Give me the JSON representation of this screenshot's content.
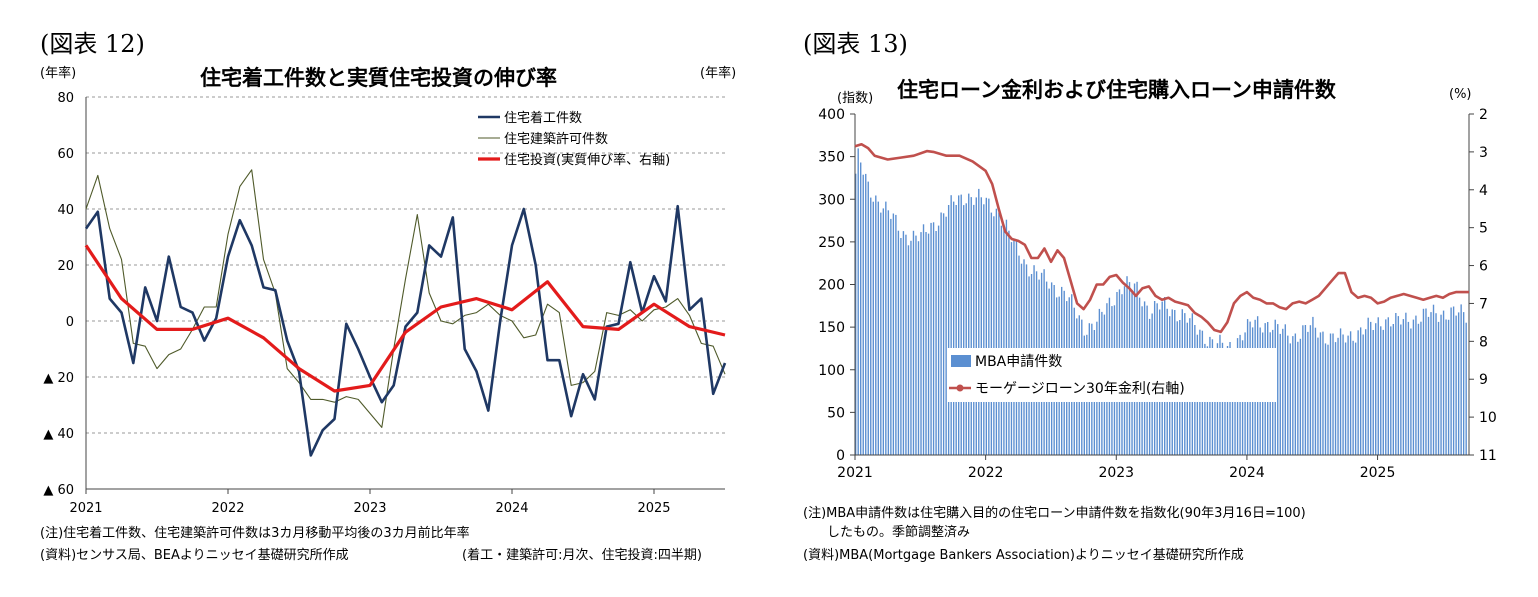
{
  "left": {
    "figure_label": "(図表 12)",
    "unit_left": "(年率)",
    "unit_right": "(年率)",
    "note1": "(注)住宅着工件数、住宅建築許可件数は3カ月移動平均後の3カ月前比年率",
    "note2": "(資料)センサス局、BEAよりニッセイ基礎研究所作成",
    "note3": "(着工・建築許可:月次、住宅投資:四半期)"
  },
  "right": {
    "figure_label": "(図表 13)",
    "unit_left": "(指数)",
    "unit_right": "(%)",
    "note1": "(注)MBA申請件数は住宅購入目的の住宅ローン申請件数を指数化(90年3月16日=100)",
    "note2": "したもの。季節調整済み",
    "note3": "(資料)MBA(Mortgage Bankers Association)よりニッセイ基礎研究所作成"
  },
  "chart_data": [
    {
      "type": "line",
      "title": "住宅着工件数と実質住宅投資の伸び率",
      "xlabel": "",
      "ylabel": "(年率)",
      "ylim": [
        -60,
        80
      ],
      "yticks": [
        80,
        60,
        40,
        20,
        0,
        -20,
        -40,
        -60
      ],
      "ytick_labels": [
        "80",
        "60",
        "40",
        "20",
        "0",
        "▲ 20",
        "▲ 40",
        "▲ 60"
      ],
      "xlim": [
        2021.0,
        2025.5
      ],
      "xticks": [
        2021,
        2022,
        2023,
        2024,
        2025
      ],
      "xtick_labels": [
        "2021",
        "2022",
        "2023",
        "2024",
        "2025"
      ],
      "grid": "horizontal-dashed",
      "legend_position": "top-right",
      "series": [
        {
          "name": "住宅着工件数",
          "color": "#1f3864",
          "width": 2.6,
          "x": [
            2021.0,
            2021.083,
            2021.167,
            2021.25,
            2021.333,
            2021.417,
            2021.5,
            2021.583,
            2021.667,
            2021.75,
            2021.833,
            2021.917,
            2022.0,
            2022.083,
            2022.167,
            2022.25,
            2022.333,
            2022.417,
            2022.5,
            2022.583,
            2022.667,
            2022.75,
            2022.833,
            2022.917,
            2023.0,
            2023.083,
            2023.167,
            2023.25,
            2023.333,
            2023.417,
            2023.5,
            2023.583,
            2023.667,
            2023.75,
            2023.833,
            2023.917,
            2024.0,
            2024.083,
            2024.167,
            2024.25,
            2024.333,
            2024.417,
            2024.5,
            2024.583,
            2024.667,
            2024.75,
            2024.833,
            2024.917,
            2025.0,
            2025.083,
            2025.167,
            2025.25,
            2025.333,
            2025.417,
            2025.5
          ],
          "y": [
            33,
            39,
            8,
            3,
            -15,
            12,
            0,
            23,
            5,
            3,
            -7,
            1,
            23,
            36,
            27,
            12,
            11,
            -7,
            -18,
            -48,
            -39,
            -35,
            -1,
            -10,
            -20,
            -29,
            -23,
            -2,
            3,
            27,
            23,
            37,
            -10,
            -18,
            -32,
            0,
            27,
            40,
            20,
            -14,
            -14,
            -34,
            -19,
            -28,
            -2,
            -1,
            21,
            3,
            16,
            7,
            41,
            4,
            8,
            -26,
            -15
          ]
        },
        {
          "name": "住宅建築許可件数",
          "color": "#4f5a2a",
          "width": 1.1,
          "x": [
            2021.0,
            2021.083,
            2021.167,
            2021.25,
            2021.333,
            2021.417,
            2021.5,
            2021.583,
            2021.667,
            2021.75,
            2021.833,
            2021.917,
            2022.0,
            2022.083,
            2022.167,
            2022.25,
            2022.333,
            2022.417,
            2022.5,
            2022.583,
            2022.667,
            2022.75,
            2022.833,
            2022.917,
            2023.0,
            2023.083,
            2023.167,
            2023.25,
            2023.333,
            2023.417,
            2023.5,
            2023.583,
            2023.667,
            2023.75,
            2023.833,
            2023.917,
            2024.0,
            2024.083,
            2024.167,
            2024.25,
            2024.333,
            2024.417,
            2024.5,
            2024.583,
            2024.667,
            2024.75,
            2024.833,
            2024.917,
            2025.0,
            2025.083,
            2025.167,
            2025.25,
            2025.333,
            2025.417,
            2025.5
          ],
          "y": [
            40,
            52,
            33,
            22,
            -8,
            -9,
            -17,
            -12,
            -10,
            -3,
            5,
            5,
            31,
            48,
            54,
            22,
            10,
            -17,
            -22,
            -28,
            -28,
            -29,
            -27,
            -28,
            -33,
            -38,
            -10,
            15,
            38,
            10,
            0,
            -1,
            2,
            3,
            6,
            2,
            0,
            -6,
            -5,
            6,
            3,
            -23,
            -22,
            -18,
            3,
            2,
            4,
            0,
            4,
            5,
            8,
            2,
            -8,
            -9,
            -19
          ]
        },
        {
          "name": "住宅投資(実質伸び率、右軸)",
          "color": "#e31b1b",
          "width": 3.2,
          "x": [
            2021.0,
            2021.25,
            2021.5,
            2021.75,
            2022.0,
            2022.25,
            2022.5,
            2022.75,
            2023.0,
            2023.25,
            2023.5,
            2023.75,
            2024.0,
            2024.25,
            2024.5,
            2024.75,
            2025.0,
            2025.25,
            2025.5
          ],
          "y": [
            27,
            8,
            -3,
            -3,
            1,
            -6,
            -17,
            -25,
            -23,
            -4,
            5,
            8,
            4,
            14,
            -2,
            -3,
            6,
            -2,
            -5
          ]
        }
      ]
    },
    {
      "type": "bar+line",
      "title": "住宅ローン金利および住宅購入ローン申請件数",
      "xlabel": "",
      "ylabel_left": "(指数)",
      "ylabel_right": "(%)",
      "ylim_left": [
        0,
        400
      ],
      "yticks_left": [
        0,
        50,
        100,
        150,
        200,
        250,
        300,
        350,
        400
      ],
      "ylim_right_inverted": [
        11,
        2
      ],
      "yticks_right": [
        2,
        3,
        4,
        5,
        6,
        7,
        8,
        9,
        10,
        11
      ],
      "xlim": [
        2021.0,
        2025.7
      ],
      "xticks": [
        2021,
        2022,
        2023,
        2024,
        2025
      ],
      "xtick_labels": [
        "2021",
        "2022",
        "2023",
        "2024",
        "2025"
      ],
      "grid": "none",
      "legend_position": "bottom-center",
      "series": [
        {
          "name": "MBA申請件数",
          "kind": "bar",
          "axis": "left",
          "color": "#5b8fd1",
          "anchors_x": [
            2021.0,
            2021.02,
            2021.05,
            2021.1,
            2021.2,
            2021.25,
            2021.35,
            2021.5,
            2021.65,
            2021.75,
            2021.85,
            2021.95,
            2022.1,
            2022.2,
            2022.3,
            2022.4,
            2022.5,
            2022.6,
            2022.75,
            2022.85,
            2022.95,
            2023.05,
            2023.15,
            2023.25,
            2023.35,
            2023.5,
            2023.6,
            2023.75,
            2023.85,
            2023.95,
            2024.05,
            2024.15,
            2024.25,
            2024.35,
            2024.5,
            2024.6,
            2024.7,
            2024.85,
            2024.95,
            2025.05,
            2025.15,
            2025.25,
            2025.4,
            2025.55,
            2025.7
          ],
          "anchors_y": [
            330,
            350,
            335,
            310,
            295,
            285,
            260,
            255,
            280,
            295,
            305,
            300,
            285,
            250,
            225,
            210,
            200,
            190,
            150,
            155,
            180,
            200,
            195,
            170,
            175,
            165,
            150,
            130,
            125,
            140,
            155,
            155,
            145,
            140,
            150,
            140,
            135,
            145,
            150,
            160,
            155,
            160,
            165,
            168,
            162
          ]
        },
        {
          "name": "モーゲージローン30年金利(右軸)",
          "kind": "line",
          "axis": "right",
          "color": "#c0504d",
          "width": 2.6,
          "x": [
            2021.0,
            2021.05,
            2021.1,
            2021.15,
            2021.25,
            2021.35,
            2021.45,
            2021.55,
            2021.6,
            2021.7,
            2021.8,
            2021.9,
            2022.0,
            2022.05,
            2022.1,
            2022.15,
            2022.2,
            2022.25,
            2022.3,
            2022.35,
            2022.4,
            2022.45,
            2022.5,
            2022.55,
            2022.6,
            2022.65,
            2022.7,
            2022.75,
            2022.8,
            2022.85,
            2022.9,
            2022.95,
            2023.0,
            2023.05,
            2023.1,
            2023.15,
            2023.2,
            2023.25,
            2023.3,
            2023.35,
            2023.4,
            2023.45,
            2023.5,
            2023.55,
            2023.6,
            2023.65,
            2023.7,
            2023.75,
            2023.8,
            2023.85,
            2023.9,
            2023.95,
            2024.0,
            2024.05,
            2024.1,
            2024.15,
            2024.2,
            2024.25,
            2024.3,
            2024.35,
            2024.4,
            2024.45,
            2024.5,
            2024.55,
            2024.6,
            2024.65,
            2024.7,
            2024.75,
            2024.8,
            2024.85,
            2024.9,
            2024.95,
            2025.0,
            2025.05,
            2025.1,
            2025.15,
            2025.2,
            2025.25,
            2025.3,
            2025.35,
            2025.4,
            2025.45,
            2025.5,
            2025.55,
            2025.6,
            2025.65,
            2025.7
          ],
          "y": [
            2.85,
            2.8,
            2.9,
            3.1,
            3.2,
            3.15,
            3.1,
            2.98,
            3.0,
            3.1,
            3.1,
            3.25,
            3.5,
            3.85,
            4.5,
            5.1,
            5.3,
            5.35,
            5.45,
            5.8,
            5.8,
            5.55,
            5.9,
            5.6,
            5.8,
            6.4,
            7.0,
            7.15,
            6.9,
            6.5,
            6.5,
            6.3,
            6.25,
            6.45,
            6.6,
            6.8,
            6.6,
            6.55,
            6.8,
            6.9,
            6.85,
            6.95,
            7.0,
            7.05,
            7.25,
            7.35,
            7.5,
            7.7,
            7.75,
            7.5,
            7.0,
            6.8,
            6.7,
            6.85,
            6.9,
            7.0,
            7.0,
            7.1,
            7.15,
            7.0,
            6.95,
            7.0,
            6.9,
            6.8,
            6.6,
            6.4,
            6.2,
            6.2,
            6.7,
            6.85,
            6.8,
            6.85,
            7.0,
            6.95,
            6.85,
            6.8,
            6.75,
            6.8,
            6.85,
            6.9,
            6.85,
            6.8,
            6.85,
            6.75,
            6.7,
            6.7,
            6.7
          ]
        }
      ]
    }
  ]
}
